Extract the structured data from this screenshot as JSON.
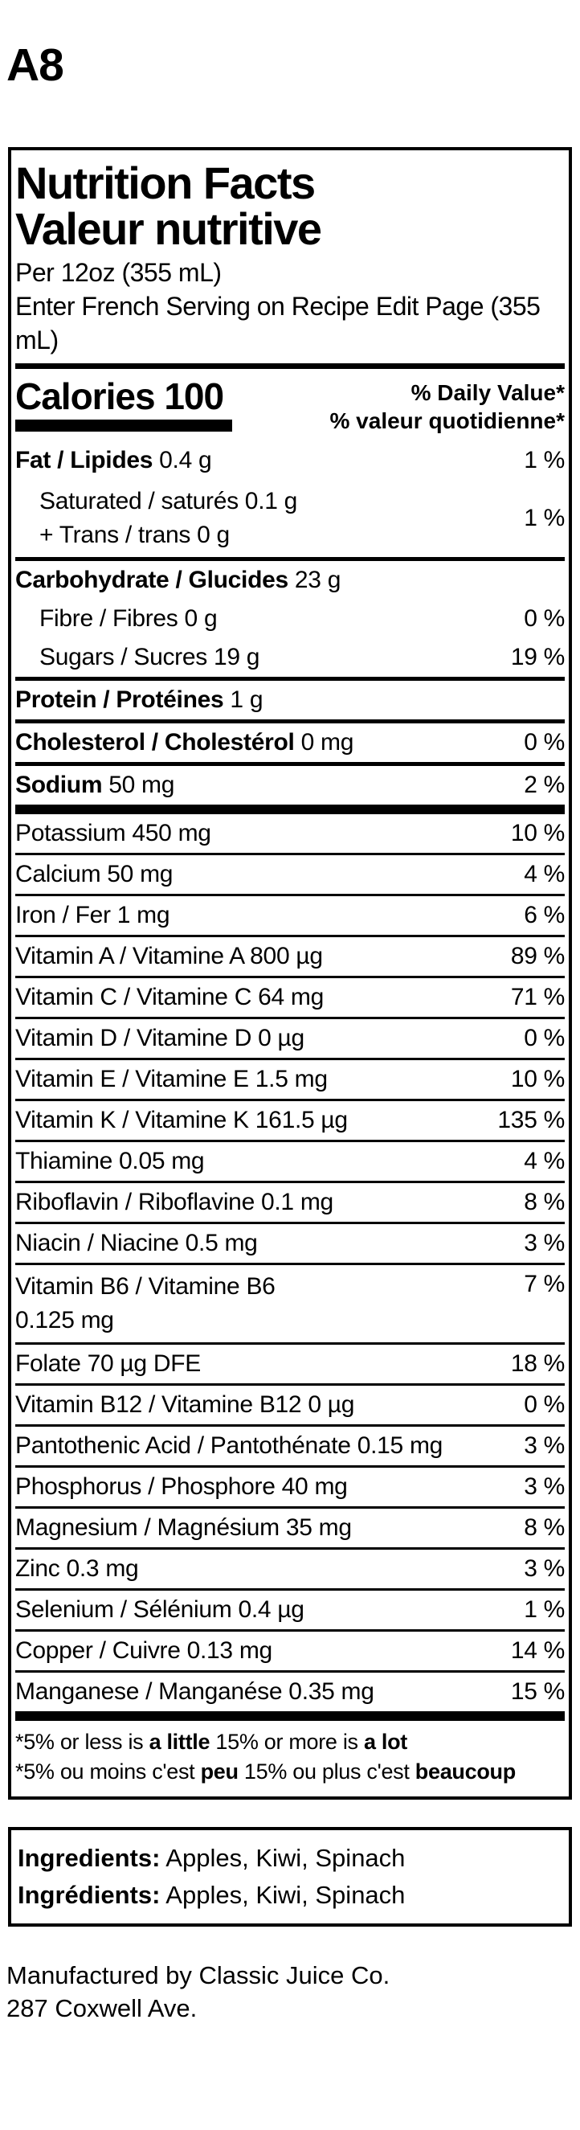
{
  "page": {
    "label": "A8"
  },
  "nutrition_label": {
    "title_en": "Nutrition Facts",
    "title_fr": "Valeur nutritive",
    "serving_en": "Per 12oz (355 mL)",
    "serving_fr": "Enter French Serving on Recipe Edit Page (355 mL)",
    "calories": {
      "label": "Calories",
      "value": "100"
    },
    "dv_header_en": "% Daily Value*",
    "dv_header_fr": "% valeur quotidienne*",
    "rows": [
      {
        "type": "main",
        "bold": "Fat / Lipides",
        "text": " 0.4 g",
        "dv": "1 %",
        "sep": "none"
      },
      {
        "type": "sub2",
        "lines": [
          "Saturated / saturés 0.1 g",
          "+ Trans / trans 0 g"
        ],
        "dv": "1 %",
        "sep": "medium"
      },
      {
        "type": "main",
        "bold": "Carbohydrate / Glucides",
        "text": " 23 g",
        "dv": "",
        "sep": "none"
      },
      {
        "type": "sub",
        "text": "Fibre / Fibres 0 g",
        "dv": "0 %",
        "sep": "none"
      },
      {
        "type": "sub",
        "text": "Sugars / Sucres 19 g",
        "dv": "19 %",
        "sep": "medium"
      },
      {
        "type": "main",
        "bold": "Protein / Protéines",
        "text": " 1 g",
        "dv": "",
        "sep": "medium"
      },
      {
        "type": "main",
        "bold": "Cholesterol / Cholestérol",
        "text": " 0 mg",
        "dv": "0 %",
        "sep": "medium"
      },
      {
        "type": "main",
        "bold": "Sodium",
        "text": " 50 mg",
        "dv": "2 %",
        "sep": "thick"
      },
      {
        "type": "plain",
        "text": "Potassium 450 mg",
        "dv": "10 %",
        "sep": "thin"
      },
      {
        "type": "plain",
        "text": "Calcium 50 mg",
        "dv": "4 %",
        "sep": "thin"
      },
      {
        "type": "plain",
        "text": "Iron / Fer 1 mg",
        "dv": "6 %",
        "sep": "thin"
      },
      {
        "type": "plain",
        "text": "Vitamin A / Vitamine A 800 µg",
        "dv": "89 %",
        "sep": "thin"
      },
      {
        "type": "plain",
        "text": "Vitamin C / Vitamine C 64 mg",
        "dv": "71 %",
        "sep": "thin"
      },
      {
        "type": "plain",
        "text": "Vitamin D / Vitamine D 0 µg",
        "dv": "0 %",
        "sep": "thin"
      },
      {
        "type": "plain",
        "text": "Vitamin E / Vitamine E 1.5 mg",
        "dv": "10 %",
        "sep": "thin"
      },
      {
        "type": "plain",
        "text": "Vitamin K / Vitamine K 161.5 µg",
        "dv": "135 %",
        "sep": "thin"
      },
      {
        "type": "plain",
        "text": "Thiamine 0.05 mg",
        "dv": "4 %",
        "sep": "thin"
      },
      {
        "type": "plain",
        "text": "Riboflavin / Riboflavine 0.1 mg",
        "dv": "8 %",
        "sep": "thin"
      },
      {
        "type": "plain",
        "text": "Niacin / Niacine 0.5 mg",
        "dv": "3 %",
        "sep": "thin"
      },
      {
        "type": "plain2",
        "lines": [
          "Vitamin B6 / Vitamine B6",
          "0.125 mg"
        ],
        "dv": "7 %",
        "sep": "thin"
      },
      {
        "type": "plain",
        "text": "Folate 70 µg DFE",
        "dv": "18 %",
        "sep": "thin"
      },
      {
        "type": "plain",
        "text": "Vitamin B12 / Vitamine B12 0 µg",
        "dv": "0 %",
        "sep": "thin"
      },
      {
        "type": "plain",
        "text": "Pantothenic Acid / Pantothénate 0.15 mg",
        "dv": "3 %",
        "sep": "thin"
      },
      {
        "type": "plain",
        "text": "Phosphorus / Phosphore 40 mg",
        "dv": "3 %",
        "sep": "thin"
      },
      {
        "type": "plain",
        "text": "Magnesium / Magnésium 35 mg",
        "dv": "8 %",
        "sep": "thin"
      },
      {
        "type": "plain",
        "text": "Zinc 0.3 mg",
        "dv": "3 %",
        "sep": "thin"
      },
      {
        "type": "plain",
        "text": "Selenium / Sélénium 0.4 µg",
        "dv": "1 %",
        "sep": "thin"
      },
      {
        "type": "plain",
        "text": "Copper / Cuivre 0.13 mg",
        "dv": "14 %",
        "sep": "thin"
      },
      {
        "type": "plain",
        "text": "Manganese / Manganése 0.35 mg",
        "dv": "15 %",
        "sep": "heavy"
      }
    ],
    "footnote_en_parts": [
      {
        "t": "*5% or less is ",
        "b": false
      },
      {
        "t": "a little",
        "b": true
      },
      {
        "t": " 15% or more is ",
        "b": false
      },
      {
        "t": "a lot",
        "b": true
      }
    ],
    "footnote_fr_parts": [
      {
        "t": "*5% ou moins c'est ",
        "b": false
      },
      {
        "t": "peu",
        "b": true
      },
      {
        "t": " 15% ou plus c'est ",
        "b": false
      },
      {
        "t": "beaucoup",
        "b": true
      }
    ]
  },
  "ingredients": {
    "en_label": "Ingredients:",
    "en_value": " Apples, Kiwi, Spinach",
    "fr_label": "Ingrédients:",
    "fr_value": " Apples, Kiwi, Spinach"
  },
  "footer": {
    "line1": "Manufactured by Classic Juice Co.",
    "line2": "287 Coxwell Ave."
  }
}
